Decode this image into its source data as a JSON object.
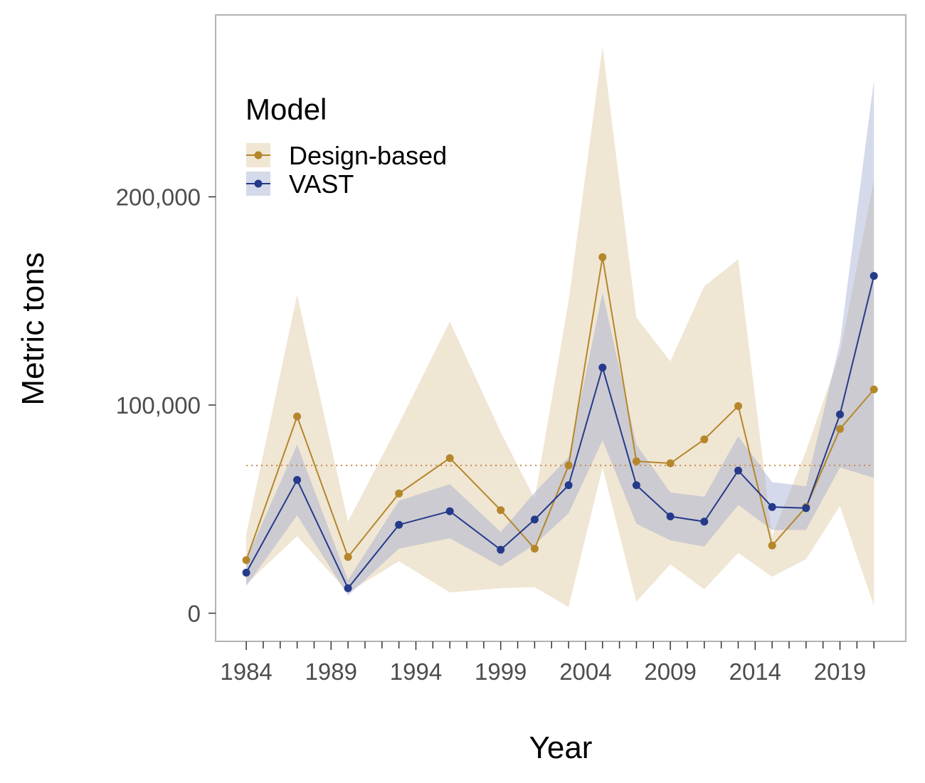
{
  "chart_data": {
    "type": "line",
    "xlabel": "Year",
    "ylabel": "Metric tons",
    "xlim": [
      1982.1,
      1974.0
    ],
    "ylim": [
      -13500,
      287000
    ],
    "x_ticks": [
      1984,
      1989,
      1994,
      1999,
      2004,
      2009,
      2014,
      2019
    ],
    "x_tick_labels": [
      "1984",
      "1989",
      "1994",
      "1999",
      "2004",
      "2009",
      "2014",
      "2019"
    ],
    "y_ticks": [
      0,
      100000,
      200000
    ],
    "y_tick_labels": [
      "0",
      "100,000",
      "200,000"
    ],
    "grid": false,
    "legend": {
      "title": "Model",
      "position": "top-left",
      "entries": [
        "Design-based",
        "VAST"
      ]
    },
    "reference_line": {
      "y": 71000,
      "style": "dotted",
      "color": "#c8894a"
    },
    "series": [
      {
        "name": "Design-based",
        "color": "#b5862b",
        "band_color": "#f0e6d4",
        "band_opacity": 1,
        "x": [
          1984,
          1987,
          1990,
          1993,
          1996,
          1999,
          2001,
          2003,
          2005,
          2007,
          2009,
          2011,
          2013,
          2015,
          2017,
          2019,
          2021
        ],
        "y": [
          25500,
          94500,
          27000,
          57500,
          74500,
          49500,
          31000,
          71000,
          171000,
          73000,
          72000,
          83500,
          99500,
          32500,
          51000,
          88500,
          107500
        ],
        "lower": [
          14000,
          37000,
          10000,
          25000,
          10000,
          12000,
          12500,
          3000,
          70000,
          5500,
          23500,
          11500,
          29000,
          17500,
          26000,
          51500,
          3500
        ],
        "upper": [
          38000,
          153000,
          44000,
          91000,
          140000,
          87000,
          55000,
          150000,
          272000,
          142000,
          121000,
          157000,
          170000,
          37000,
          78000,
          125000,
          208000
        ]
      },
      {
        "name": "VAST",
        "color": "#253a8a",
        "band_color": "#95a2cd",
        "band_opacity": 0.4,
        "x": [
          1984,
          1987,
          1990,
          1993,
          1996,
          1999,
          2001,
          2003,
          2005,
          2007,
          2009,
          2011,
          2013,
          2015,
          2017,
          2019,
          2021
        ],
        "y": [
          19500,
          64000,
          12000,
          42500,
          49000,
          30500,
          45000,
          61500,
          118000,
          61500,
          46500,
          44000,
          68500,
          51000,
          50500,
          95500,
          162000
        ],
        "lower": [
          13000,
          47000,
          8500,
          31000,
          36000,
          22500,
          33000,
          48000,
          83000,
          43000,
          35000,
          32000,
          52000,
          40000,
          40000,
          70000,
          65000
        ],
        "upper": [
          26000,
          81000,
          16000,
          54000,
          62000,
          39000,
          58000,
          75000,
          154000,
          81000,
          58000,
          56000,
          85000,
          63000,
          61000,
          130000,
          256000
        ]
      }
    ]
  }
}
